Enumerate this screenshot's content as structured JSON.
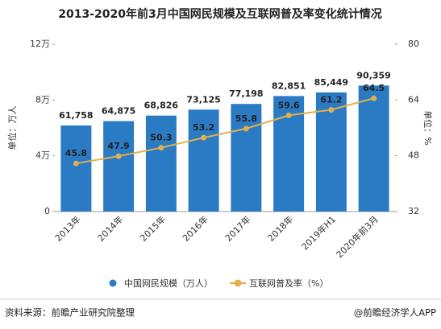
{
  "chart_data": {
    "type": "bar",
    "title": "2013-2020年前3月中国网民规模及互联网普及率变化统计情况",
    "ylabel": "单位：万人",
    "y2label": "单位：%",
    "categories": [
      "2013年",
      "2014年",
      "2015年",
      "2016年",
      "2017年",
      "2018年",
      "2019年H1",
      "2020年前3月"
    ],
    "series": [
      {
        "name": "中国网民规模（万人）",
        "type": "bar",
        "color": "#2a7bc4",
        "values": [
          61758,
          64875,
          68826,
          73125,
          77198,
          82851,
          85449,
          90359
        ],
        "value_labels": [
          "61,758",
          "64,875",
          "68,826",
          "73,125",
          "77,198",
          "82,851",
          "85,449",
          "90,359"
        ]
      },
      {
        "name": "互联网普及率（%）",
        "type": "line",
        "axis": "y2",
        "color": "#e2b04a",
        "values": [
          45.8,
          47.9,
          50.3,
          53.2,
          55.8,
          59.6,
          61.2,
          64.5
        ]
      }
    ],
    "ylim": [
      0,
      120000
    ],
    "yticks": [
      0,
      {
        "value": 40000,
        "label": "4万"
      },
      {
        "value": 80000,
        "label": "8万"
      },
      {
        "value": 120000,
        "label": "12万"
      }
    ],
    "y2lim": [
      32,
      80
    ],
    "y2ticks": [
      32,
      48,
      64,
      80
    ],
    "legend": "bottom"
  },
  "footer": {
    "source": "资料来源：前瞻产业研究院整理",
    "brand": "@前瞻经济学人APP"
  }
}
